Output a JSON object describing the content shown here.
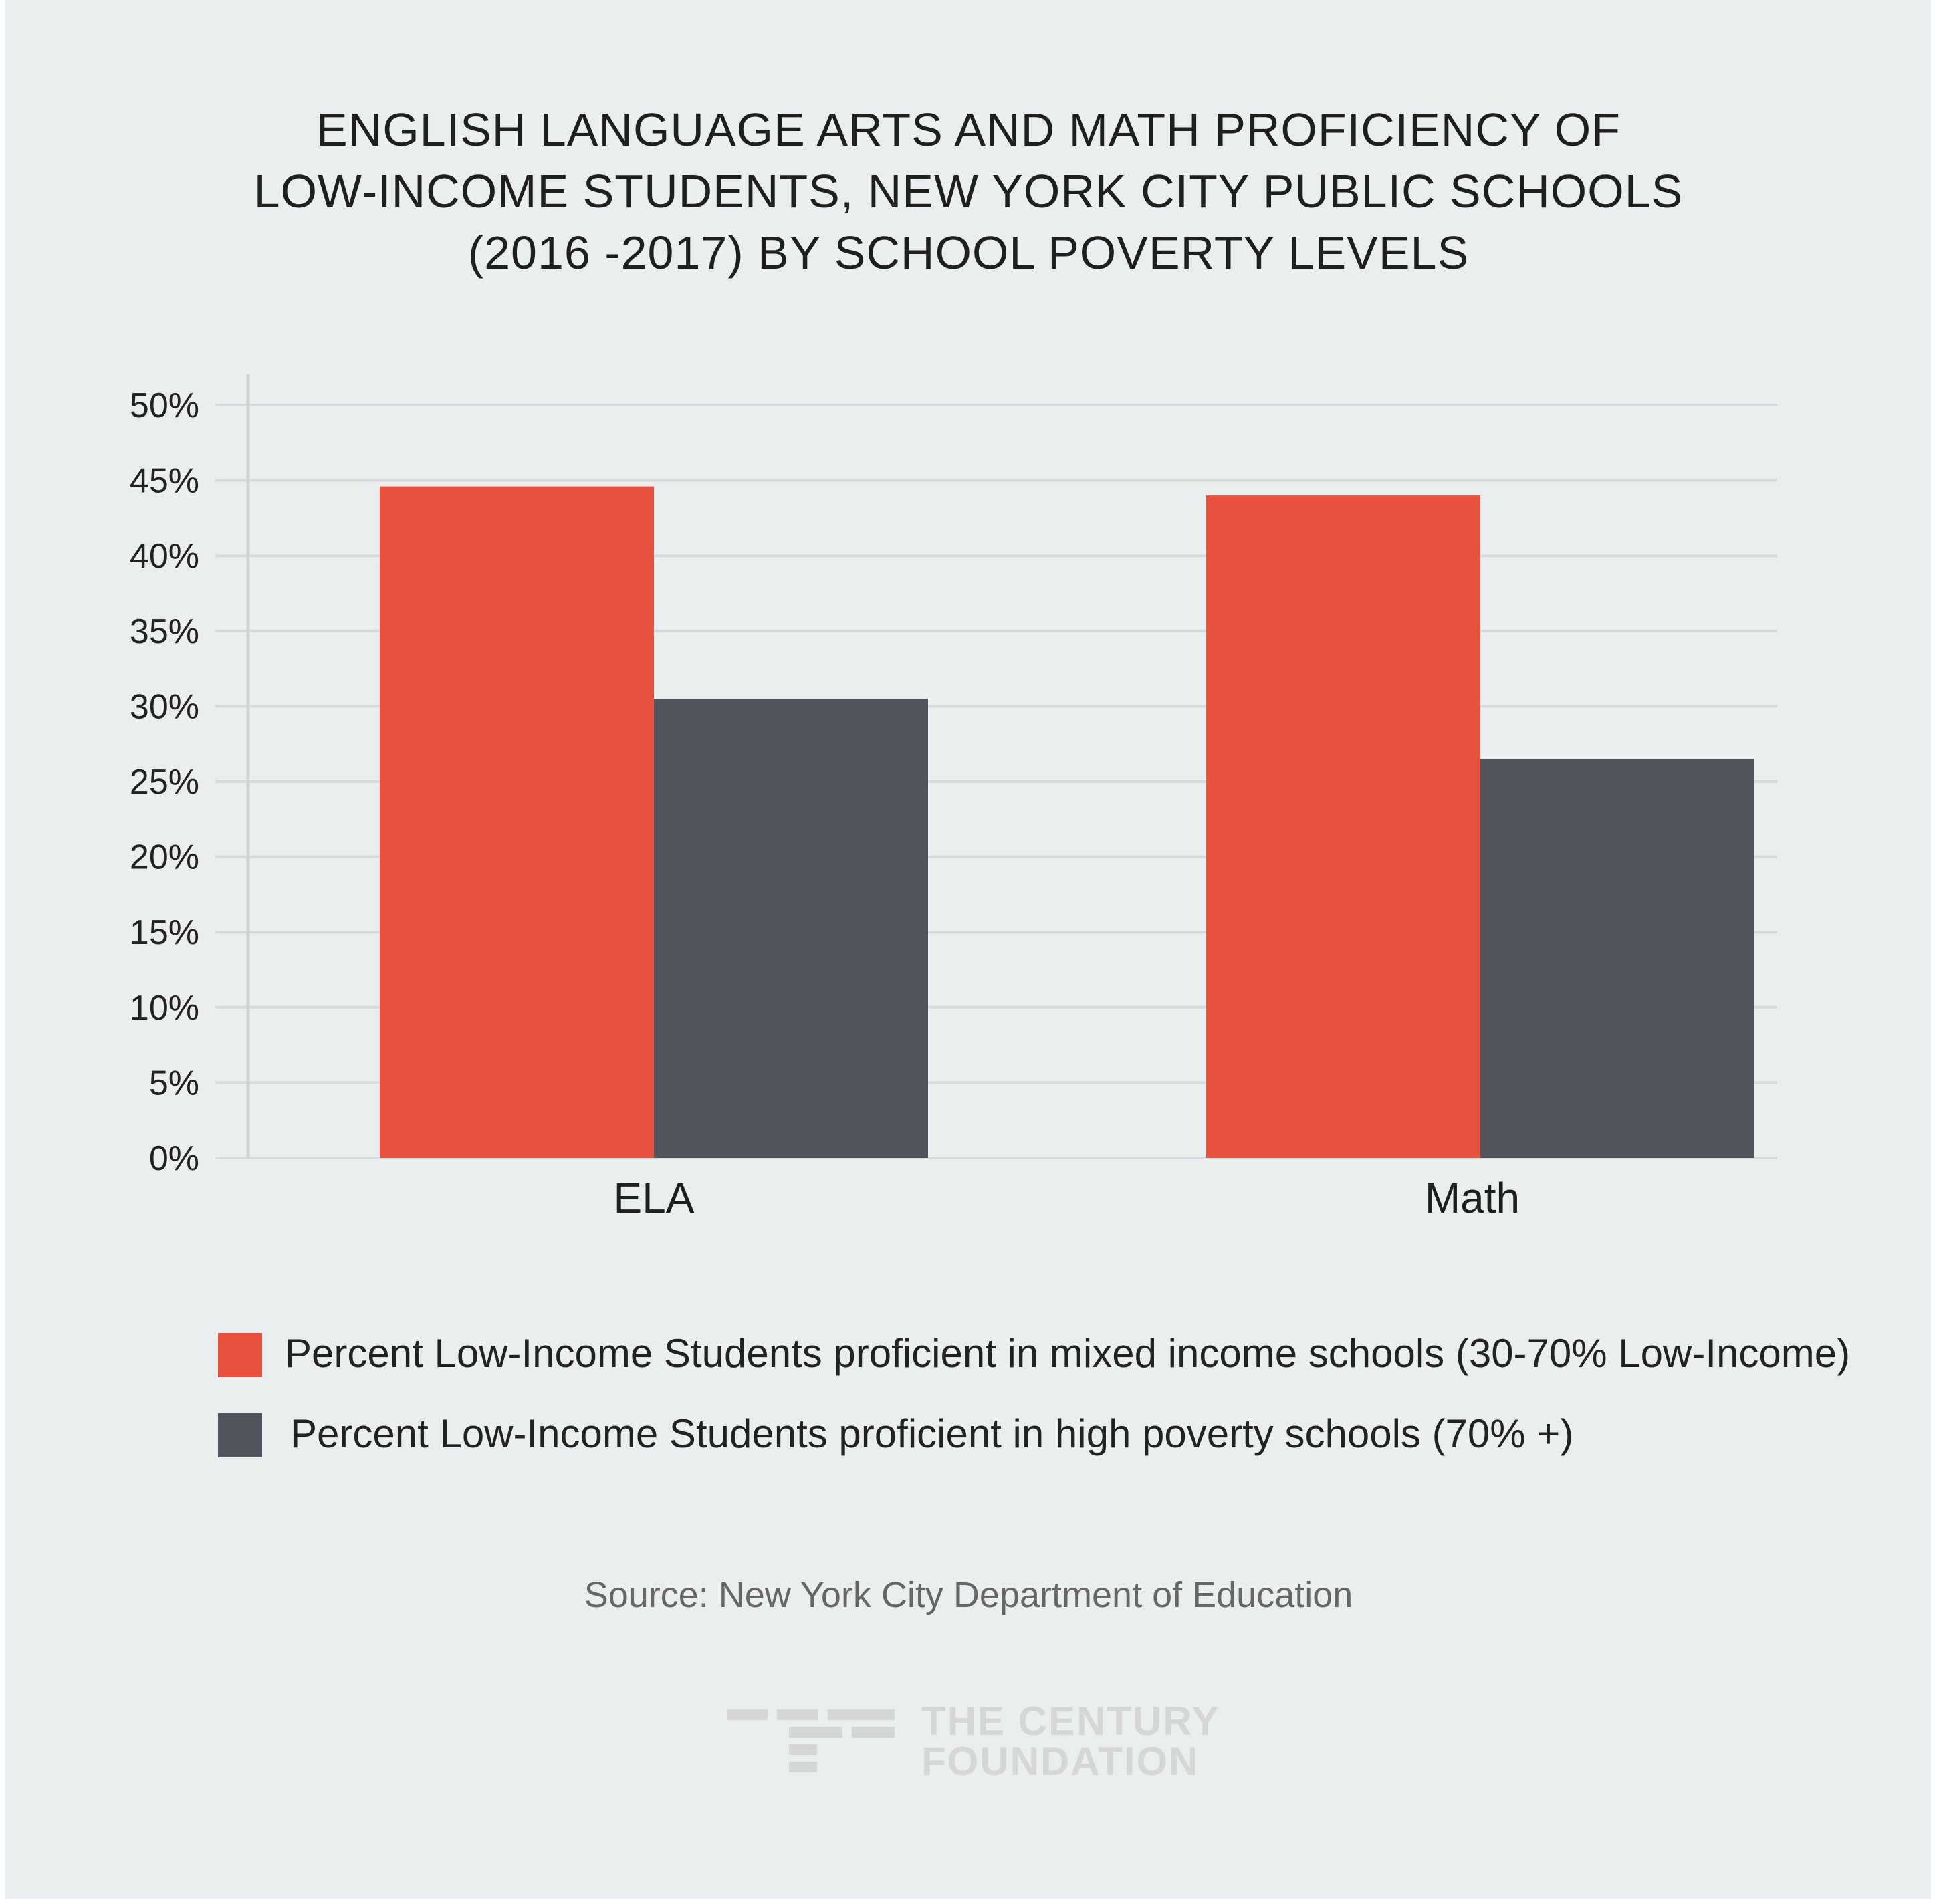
{
  "chart_data": {
    "type": "bar",
    "title_lines": [
      "ENGLISH LANGUAGE ARTS AND MATH PROFICIENCY OF",
      "LOW-INCOME STUDENTS, NEW YORK CITY PUBLIC SCHOOLS",
      "(2016 -2017) BY SCHOOL POVERTY LEVELS"
    ],
    "categories": [
      "ELA",
      "Math"
    ],
    "series": [
      {
        "name": "Percent Low-Income Students proficient in mixed income schools (30-70% Low-Income)",
        "values": [
          44.6,
          44.0
        ],
        "color": "#e8523f"
      },
      {
        "name": "Percent Low-Income Students proficient in high poverty schools (70% +)",
        "values": [
          30.5,
          26.5
        ],
        "color": "#52555e"
      }
    ],
    "ylim": [
      0,
      50
    ],
    "yticks": [
      0,
      5,
      10,
      15,
      20,
      25,
      30,
      35,
      40,
      45,
      50
    ],
    "ytick_labels": [
      "0%",
      "5%",
      "10%",
      "15%",
      "20%",
      "25%",
      "30%",
      "35%",
      "40%",
      "45%",
      "50%"
    ],
    "grid": true,
    "legend_position": "bottom-left",
    "source": "Source: New York City Department of Education"
  },
  "logo": {
    "line1": "THE CENTURY",
    "line2": "FOUNDATION"
  },
  "colors": {
    "background": "#ebeeef",
    "gridline": "#d7dadc",
    "axis": "#d0d3d5",
    "logo": "#d4d6d8"
  }
}
